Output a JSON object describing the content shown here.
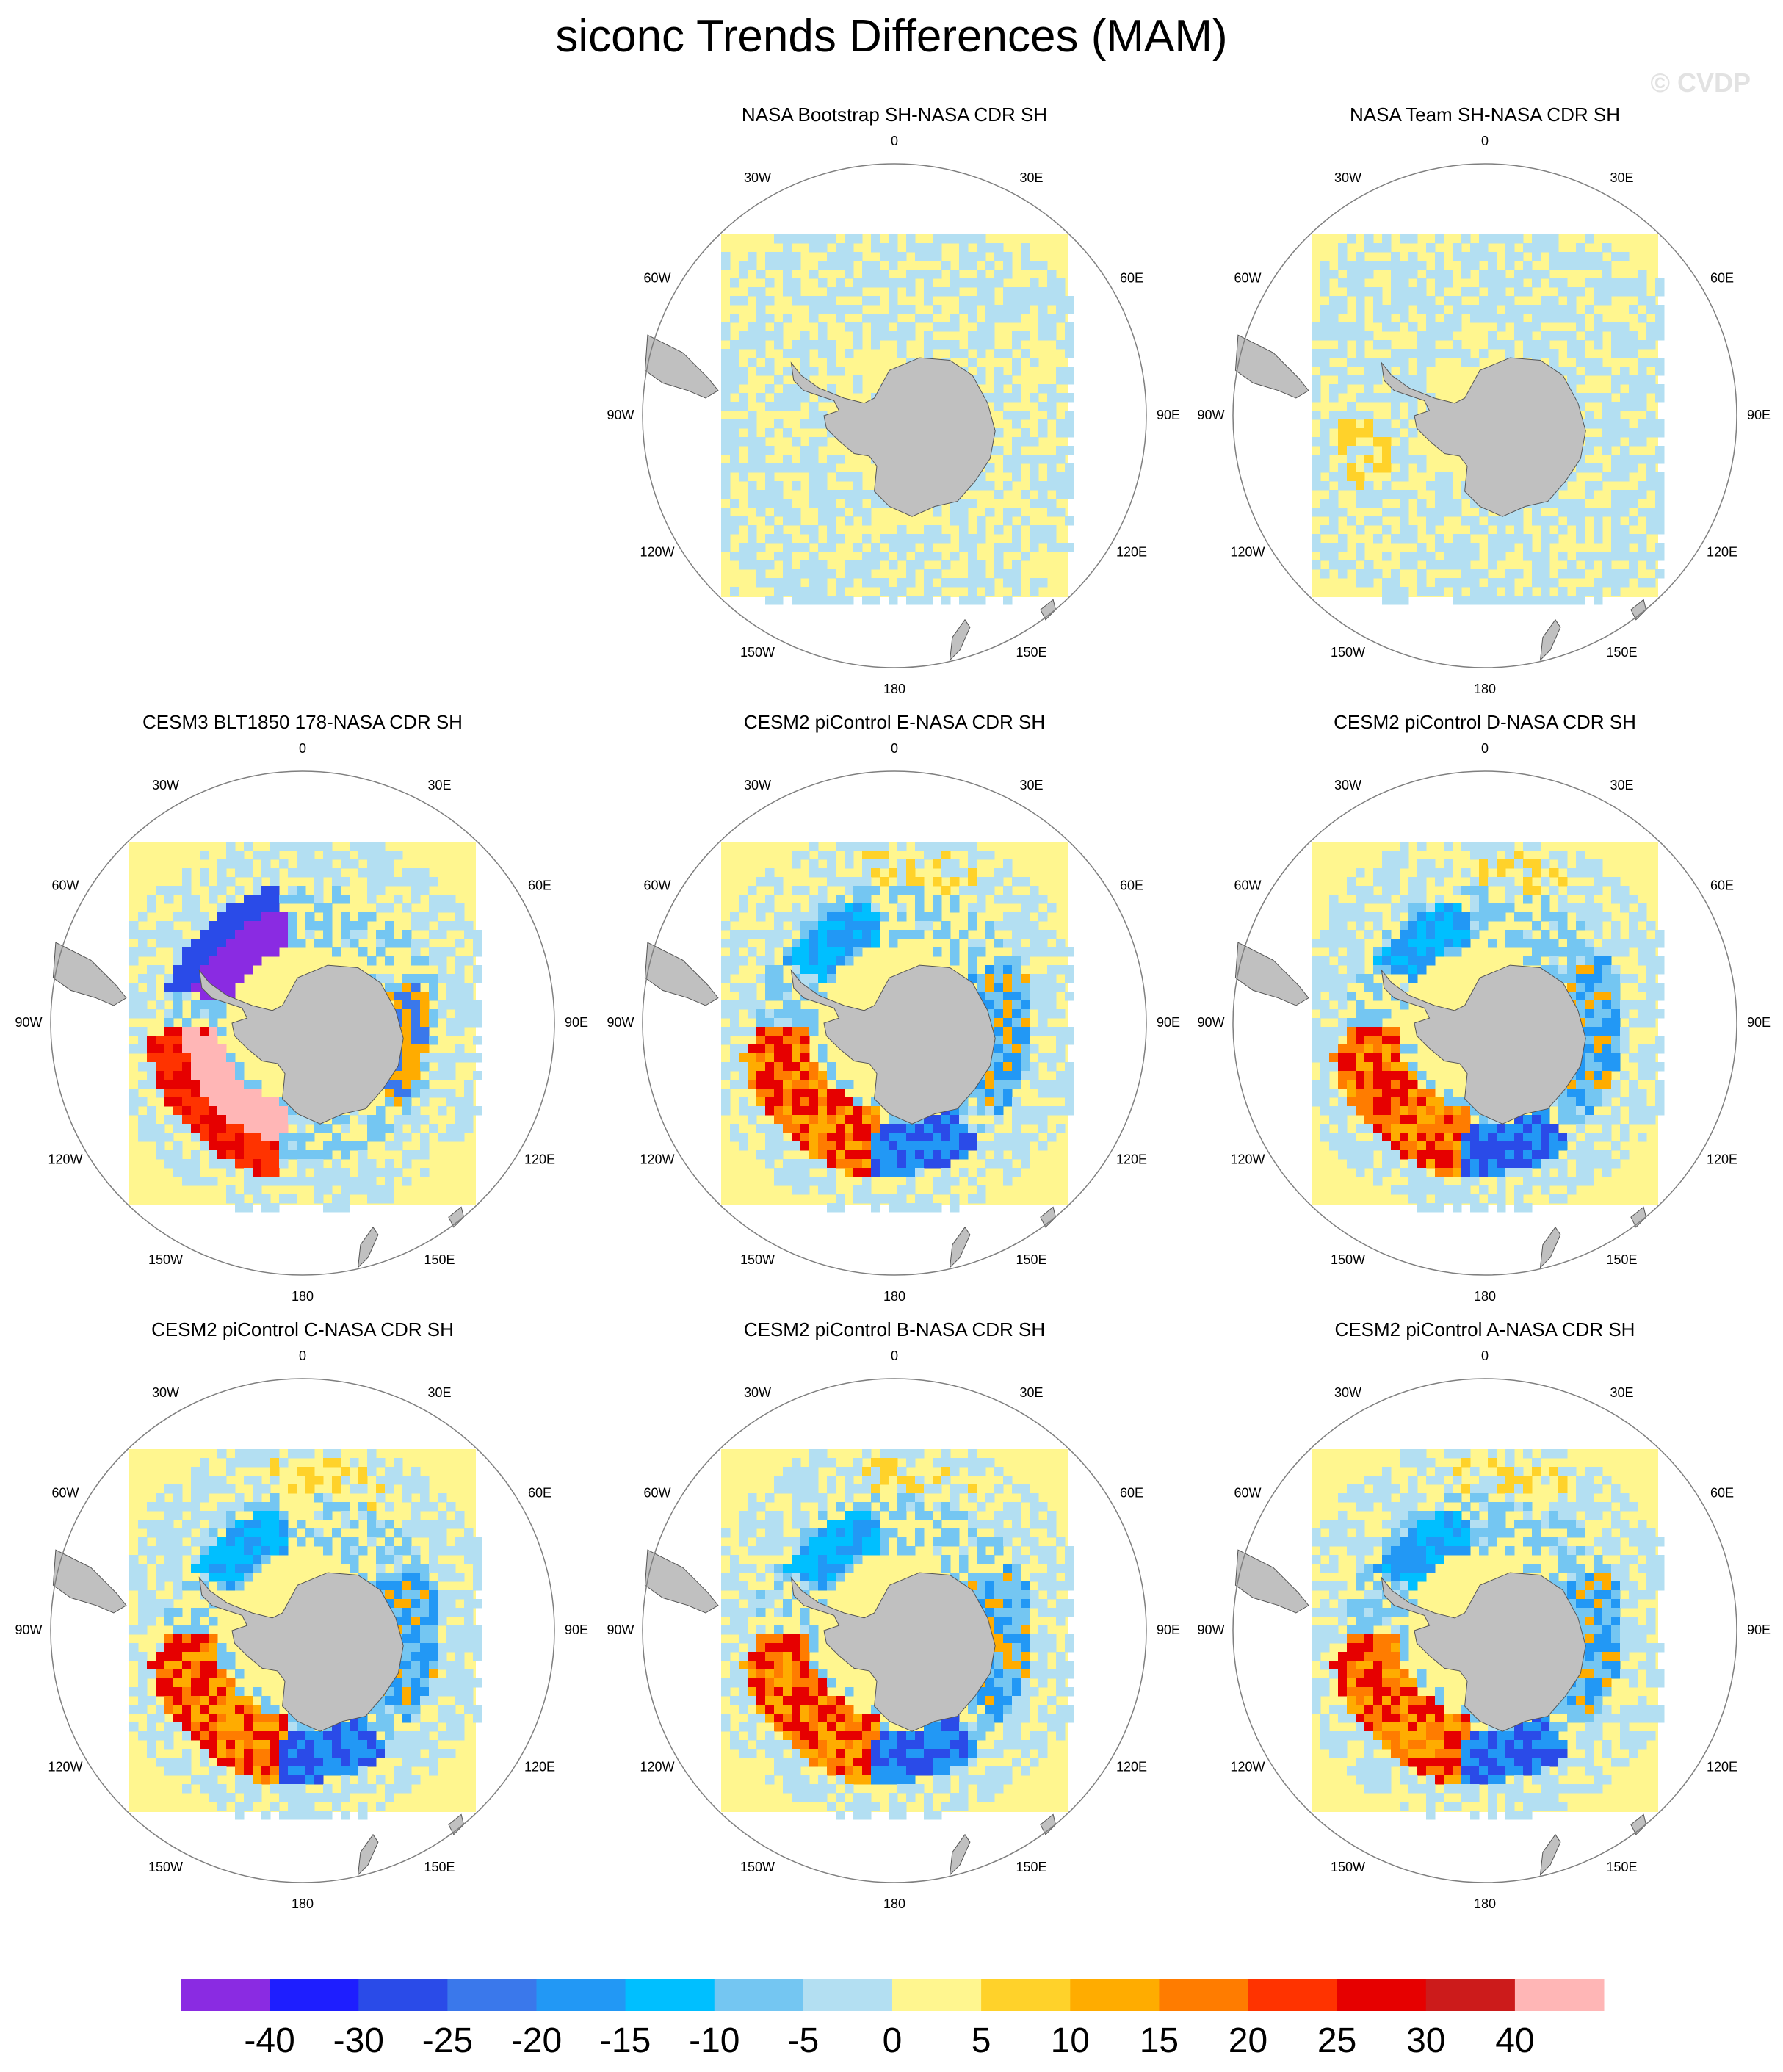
{
  "title": "siconc Trends Differences (MAM)",
  "watermark": "© CVDP",
  "colors": {
    "land": "#c0c0c0",
    "coast": "#555555",
    "circle": "#7f7f7f",
    "missing": "#ffffff"
  },
  "chart_data": [
    {
      "type": "heatmap",
      "projection": "south polar stereographic",
      "title": "NASA Bootstrap SH-NASA CDR SH",
      "pattern": "obs_bootstrap",
      "lon_labels": [
        "0",
        "30E",
        "60E",
        "90E",
        "120E",
        "150E",
        "180",
        "150W",
        "120W",
        "90W",
        "60W",
        "30W"
      ]
    },
    {
      "type": "heatmap",
      "projection": "south polar stereographic",
      "title": "NASA Team SH-NASA CDR SH",
      "pattern": "obs_team",
      "lon_labels": [
        "0",
        "30E",
        "60E",
        "90E",
        "120E",
        "150E",
        "180",
        "150W",
        "120W",
        "90W",
        "60W",
        "30W"
      ]
    },
    {
      "type": "heatmap",
      "projection": "south polar stereographic",
      "title": "CESM3 BLT1850 178-NASA CDR SH",
      "pattern": "cesm3",
      "lon_labels": [
        "0",
        "30E",
        "60E",
        "90E",
        "120E",
        "150E",
        "180",
        "150W",
        "120W",
        "90W",
        "60W",
        "30W"
      ]
    },
    {
      "type": "heatmap",
      "projection": "south polar stereographic",
      "title": "CESM2 piControl E-NASA CDR SH",
      "pattern": "cesm2",
      "lon_labels": [
        "0",
        "30E",
        "60E",
        "90E",
        "120E",
        "150E",
        "180",
        "150W",
        "120W",
        "90W",
        "60W",
        "30W"
      ]
    },
    {
      "type": "heatmap",
      "projection": "south polar stereographic",
      "title": "CESM2 piControl D-NASA CDR SH",
      "pattern": "cesm2",
      "lon_labels": [
        "0",
        "30E",
        "60E",
        "90E",
        "120E",
        "150E",
        "180",
        "150W",
        "120W",
        "90W",
        "60W",
        "30W"
      ]
    },
    {
      "type": "heatmap",
      "projection": "south polar stereographic",
      "title": "CESM2 piControl C-NASA CDR SH",
      "pattern": "cesm2",
      "lon_labels": [
        "0",
        "30E",
        "60E",
        "90E",
        "120E",
        "150E",
        "180",
        "150W",
        "120W",
        "90W",
        "60W",
        "30W"
      ]
    },
    {
      "type": "heatmap",
      "projection": "south polar stereographic",
      "title": "CESM2 piControl B-NASA CDR SH",
      "pattern": "cesm2",
      "lon_labels": [
        "0",
        "30E",
        "60E",
        "90E",
        "120E",
        "150E",
        "180",
        "150W",
        "120W",
        "90W",
        "60W",
        "30W"
      ]
    },
    {
      "type": "heatmap",
      "projection": "south polar stereographic",
      "title": "CESM2 piControl A-NASA CDR SH",
      "pattern": "cesm2",
      "lon_labels": [
        "0",
        "30E",
        "60E",
        "90E",
        "120E",
        "150E",
        "180",
        "150W",
        "120W",
        "90W",
        "60W",
        "30W"
      ]
    }
  ],
  "colorbar": {
    "levels": [
      "-40",
      "-30",
      "-25",
      "-20",
      "-15",
      "-10",
      "-5",
      "0",
      "5",
      "10",
      "15",
      "20",
      "25",
      "30",
      "40"
    ],
    "colors": [
      "#8a2be2",
      "#1e1eff",
      "#2a4be8",
      "#3a78eb",
      "#2298f5",
      "#00bfff",
      "#74c6f2",
      "#b3dff2",
      "#fff68f",
      "#ffd22a",
      "#ffac00",
      "#ff7c00",
      "#ff3300",
      "#e60000",
      "#cc1b1b",
      "#ffb6b6"
    ]
  }
}
